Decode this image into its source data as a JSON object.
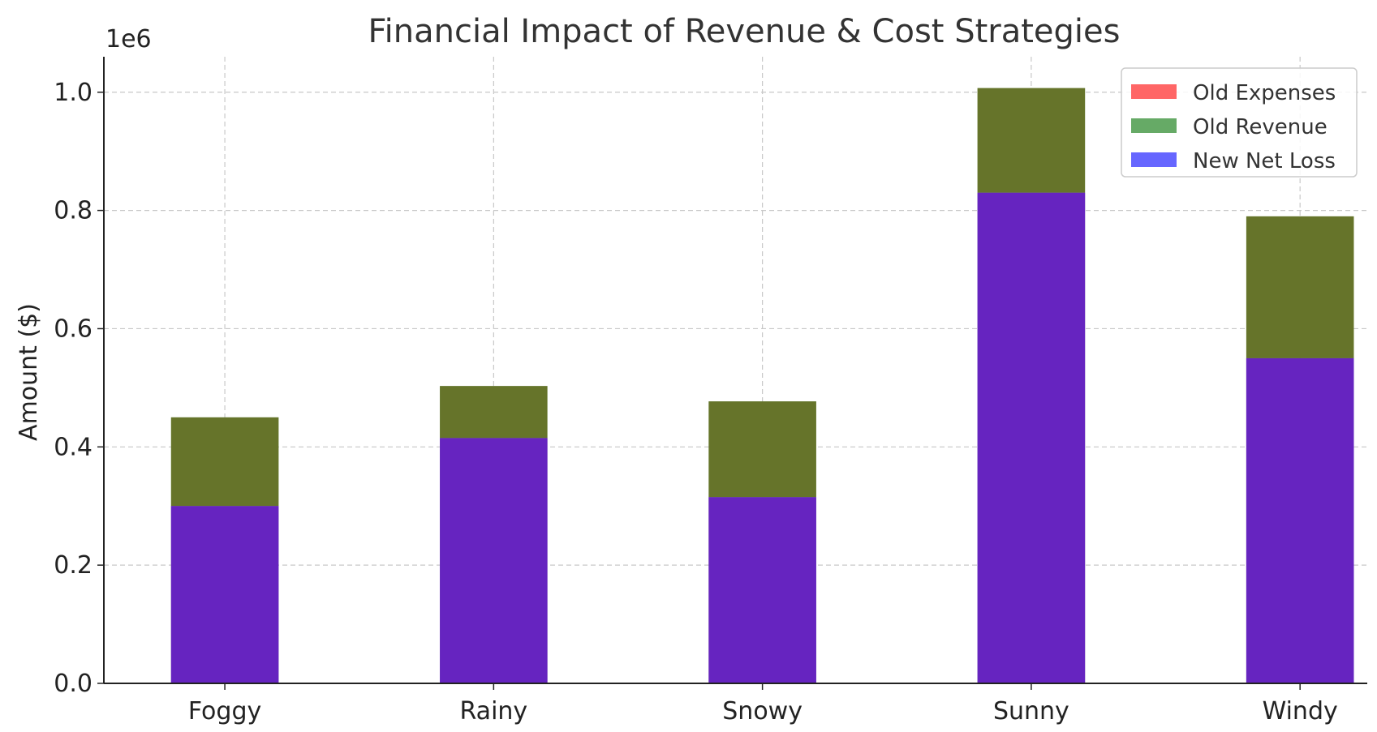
{
  "chart_data": {
    "type": "bar",
    "title": "Financial Impact of Revenue & Cost Strategies",
    "xlabel": "",
    "ylabel": "Amount ($)",
    "y_offset_label": "1e6",
    "ylim": [
      0,
      1.06
    ],
    "yticks": [
      0.0,
      0.2,
      0.4,
      0.6,
      0.8,
      1.0
    ],
    "ytick_labels": [
      "0.0",
      "0.2",
      "0.4",
      "0.6",
      "0.8",
      "1.0"
    ],
    "grid": true,
    "legend_position": "top-right",
    "categories": [
      "Foggy",
      "Rainy",
      "Snowy",
      "Sunny",
      "Windy"
    ],
    "series": [
      {
        "name": "Old Expenses",
        "color": "#ff6666",
        "values": [
          0.3,
          0.415,
          0.315,
          0.83,
          0.55
        ]
      },
      {
        "name": "Old Revenue",
        "color": "#66aa66",
        "values": [
          0.45,
          0.503,
          0.477,
          1.007,
          0.79
        ]
      },
      {
        "name": "New Net Loss",
        "color": "#6666ff",
        "values": [
          0.3,
          0.415,
          0.315,
          0.83,
          0.55
        ]
      }
    ],
    "rendered_colors": {
      "overlap_low": "#6624c0",
      "overlap_high": "#66742a"
    }
  }
}
